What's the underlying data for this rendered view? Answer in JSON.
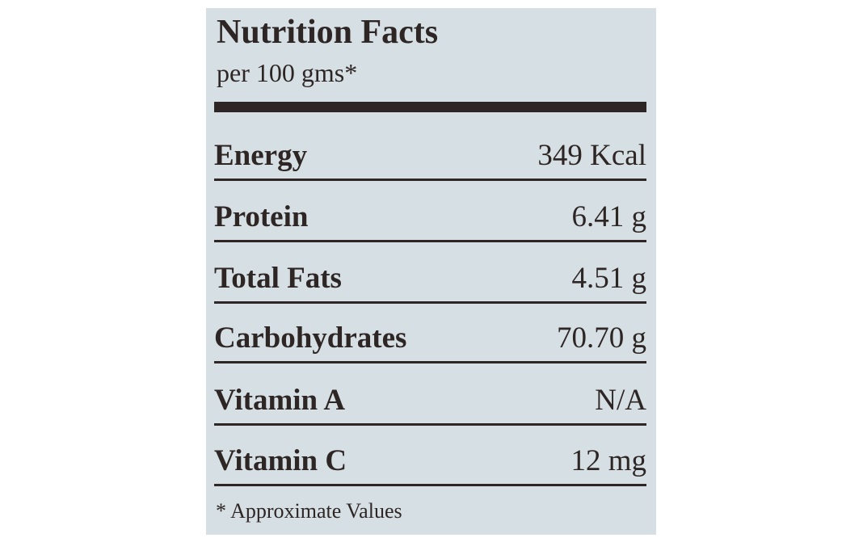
{
  "header": {
    "title": "Nutrition Facts",
    "subtitle": "per 100 gms*"
  },
  "table": {
    "rows": [
      {
        "label": "Energy",
        "value": "349 Kcal"
      },
      {
        "label": "Protein",
        "value": "6.41 g"
      },
      {
        "label": "Total Fats",
        "value": "4.51 g"
      },
      {
        "label": "Carbohydrates",
        "value": "70.70 g"
      },
      {
        "label": "Vitamin A",
        "value": "N/A"
      },
      {
        "label": "Vitamin C",
        "value": "12 mg"
      }
    ]
  },
  "footnote": "* Approximate Values"
}
